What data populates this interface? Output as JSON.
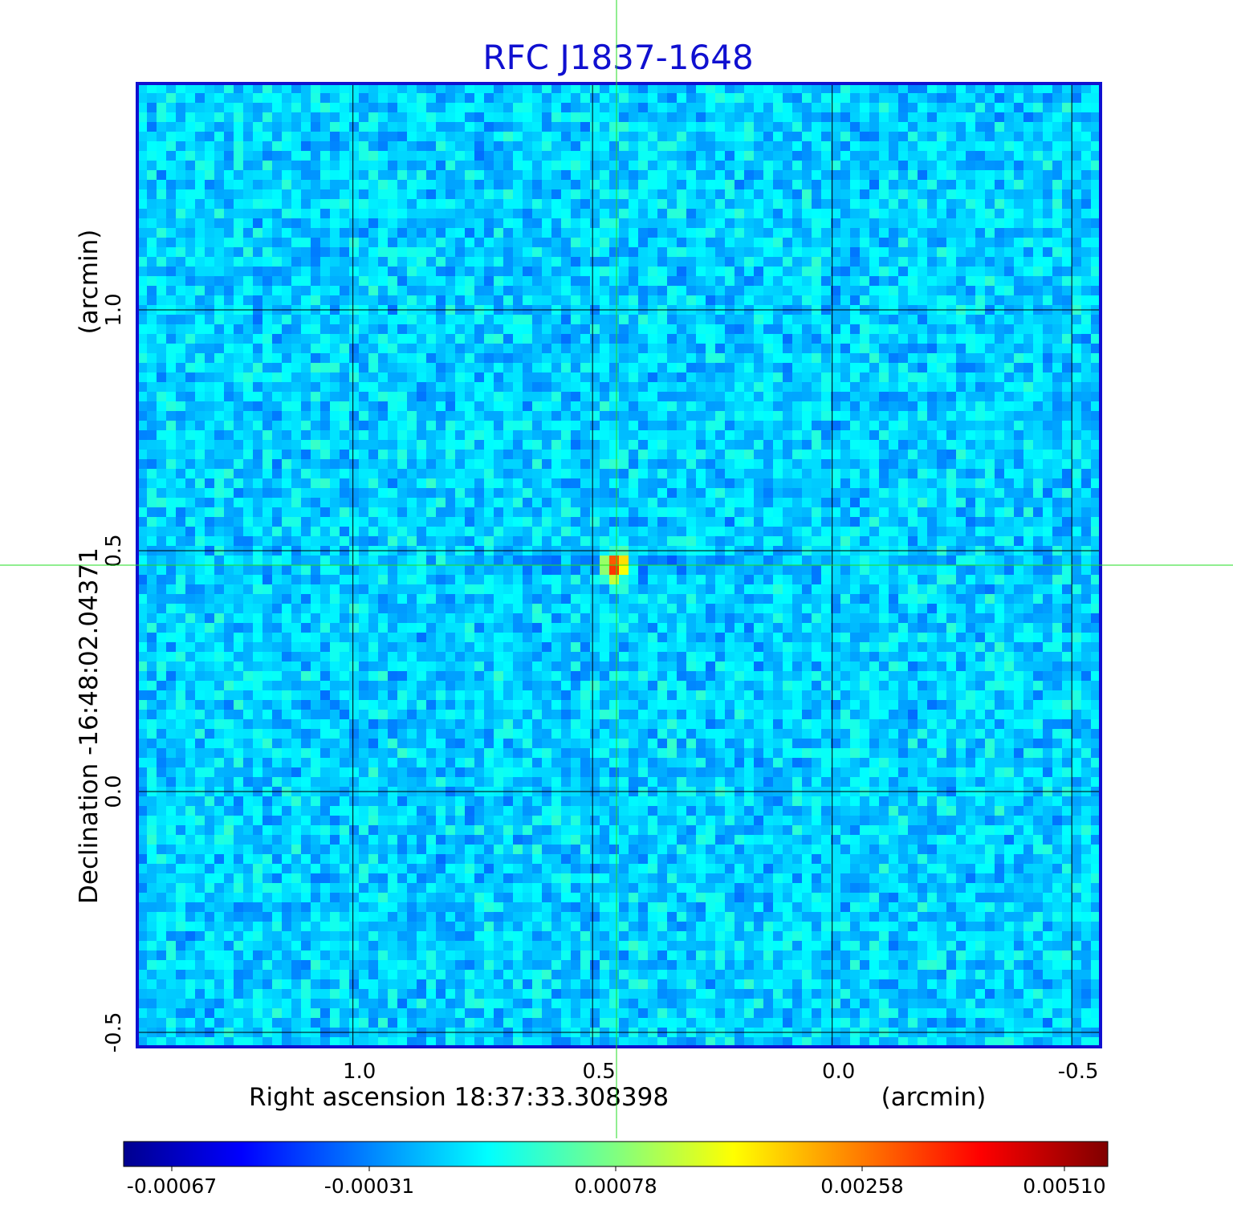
{
  "chart_data": {
    "type": "heatmap",
    "title": "RFC J1837-1648",
    "xlabel": "Right ascension  18:37:33.308398",
    "xunit": "(arcmin)",
    "ylabel": "Declination  -16:48:02.04371",
    "yunit": "(arcmin)",
    "xlim": [
      1.45,
      -0.56
    ],
    "ylim": [
      -0.53,
      1.47
    ],
    "x_ticks": [
      {
        "value": 1.0,
        "label": "1.0"
      },
      {
        "value": 0.5,
        "label": "0.5"
      },
      {
        "value": 0.0,
        "label": "0.0"
      },
      {
        "value": -0.5,
        "label": "-0.5"
      }
    ],
    "y_ticks": [
      {
        "value": -0.5,
        "label": "-0.5"
      },
      {
        "value": 0.0,
        "label": "0.0"
      },
      {
        "value": 0.5,
        "label": "0.5"
      },
      {
        "value": 1.0,
        "label": "1.0"
      }
    ],
    "grid": true,
    "crosshair": {
      "x": 0.45,
      "y": 0.47,
      "color": "#22dd22"
    },
    "source_peak": {
      "x": 0.45,
      "y": 0.47,
      "value": 0.0051
    },
    "background_noise": "low-level noise around 0 to -0.0003",
    "colormap": "jet",
    "colorbar": {
      "ticks": [
        "-0.00067",
        "-0.00031",
        "0.00078",
        "0.00258",
        "0.00510"
      ],
      "position": "bottom"
    }
  },
  "colors": {
    "title": "#1010d0",
    "frame": "#1010d0",
    "grid": "#000000",
    "crosshair": "#22dd22"
  }
}
